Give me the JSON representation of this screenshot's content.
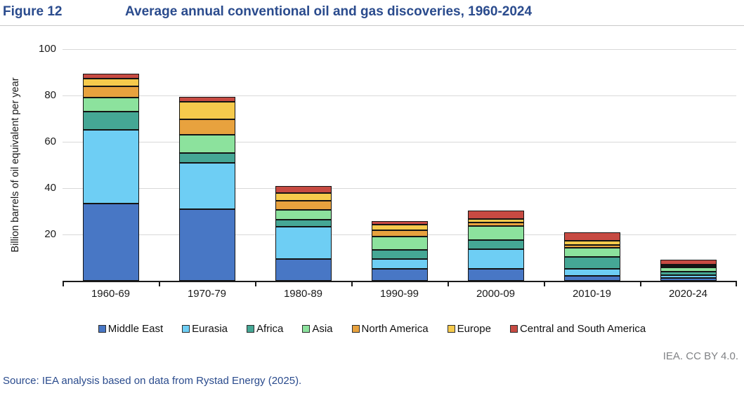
{
  "header": {
    "figure_label": "Figure 12",
    "title": "Average annual conventional oil and gas discoveries, 1960-2024"
  },
  "chart_data": {
    "type": "bar",
    "stacked": true,
    "title": "Average annual conventional oil and gas discoveries, 1960-2024",
    "xlabel": "",
    "ylabel": "Billion barrels of oil equivalent per year",
    "ylim": [
      0,
      100
    ],
    "yticks": [
      20,
      40,
      60,
      80,
      100
    ],
    "grid": "horizontal-major",
    "legend_position": "bottom",
    "categories": [
      "1960-69",
      "1970-79",
      "1980-89",
      "1990-99",
      "2000-09",
      "2010-19",
      "2020-24"
    ],
    "series": [
      {
        "name": "Middle East",
        "color": "#4877c5",
        "values": [
          33.2,
          31.0,
          9.4,
          5.0,
          5.1,
          2.1,
          1.1
        ]
      },
      {
        "name": "Eurasia",
        "color": "#6ecef4",
        "values": [
          31.8,
          20.0,
          13.9,
          4.4,
          8.5,
          3.0,
          1.4
        ]
      },
      {
        "name": "Africa",
        "color": "#45a795",
        "values": [
          8.0,
          4.2,
          3.0,
          4.0,
          4.1,
          5.3,
          1.4
        ]
      },
      {
        "name": "Asia",
        "color": "#8ce29d",
        "values": [
          6.0,
          7.9,
          4.3,
          5.8,
          5.9,
          3.7,
          1.9
        ]
      },
      {
        "name": "North America",
        "color": "#e8a23e",
        "values": [
          4.8,
          6.6,
          3.8,
          2.6,
          1.5,
          1.5,
          0.6
        ]
      },
      {
        "name": "Europe",
        "color": "#f6ca4c",
        "values": [
          3.4,
          7.6,
          3.6,
          2.3,
          1.5,
          1.8,
          0.6
        ]
      },
      {
        "name": "Central and South America",
        "color": "#c74a42",
        "values": [
          2.2,
          2.0,
          3.0,
          1.8,
          3.6,
          3.4,
          2.0
        ]
      }
    ]
  },
  "footer": {
    "license": "IEA. CC BY 4.0.",
    "source": "Source: IEA analysis based on data from Rystad Energy (2025)."
  }
}
